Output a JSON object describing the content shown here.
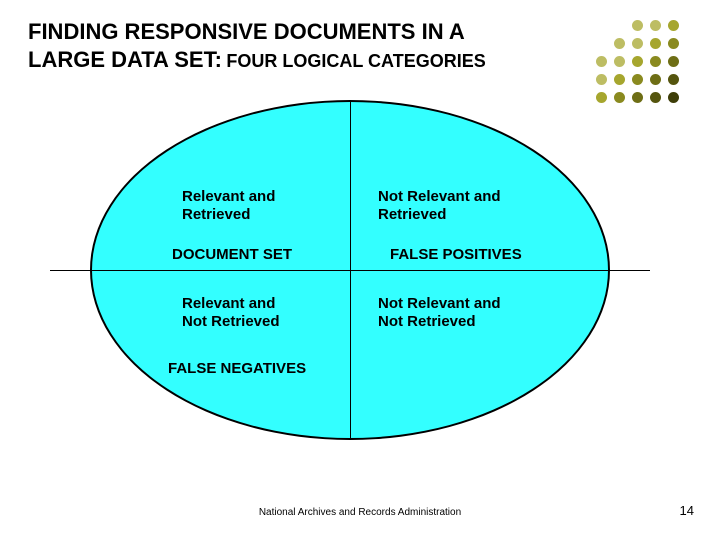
{
  "title": {
    "line1": "FINDING RESPONSIVE DOCUMENTS IN A",
    "line2_main": "LARGE DATA SET:",
    "line2_sub": "FOUR LOGICAL CATEGORIES"
  },
  "dots": {
    "rows": 5,
    "cols": 5,
    "spacing": 18,
    "radius": 11,
    "colors": [
      [
        "#c9c98a",
        "#c9c98a",
        "#bdbd63",
        "#bdbd63",
        "#a6a62e"
      ],
      [
        "#c9c98a",
        "#bdbd63",
        "#bdbd63",
        "#a6a62e",
        "#8a8a1f"
      ],
      [
        "#bdbd63",
        "#bdbd63",
        "#a6a62e",
        "#8a8a1f",
        "#6e6e15"
      ],
      [
        "#bdbd63",
        "#a6a62e",
        "#8a8a1f",
        "#6e6e15",
        "#55550e"
      ],
      [
        "#a6a62e",
        "#8a8a1f",
        "#6e6e15",
        "#55550e",
        "#3d3d08"
      ]
    ]
  },
  "diagram": {
    "fill": "#33ffff",
    "q1": {
      "l1": "Relevant and",
      "l2": "Retrieved",
      "tag": "DOCUMENT SET"
    },
    "q2": {
      "l1": "Not Relevant and",
      "l2": "Retrieved",
      "tag": "FALSE POSITIVES"
    },
    "q3": {
      "l1": "Relevant and",
      "l2": "Not Retrieved",
      "tag": "FALSE NEGATIVES"
    },
    "q4": {
      "l1": "Not Relevant and",
      "l2": "Not Retrieved"
    }
  },
  "footer": "National Archives and Records Administration",
  "page": "14"
}
